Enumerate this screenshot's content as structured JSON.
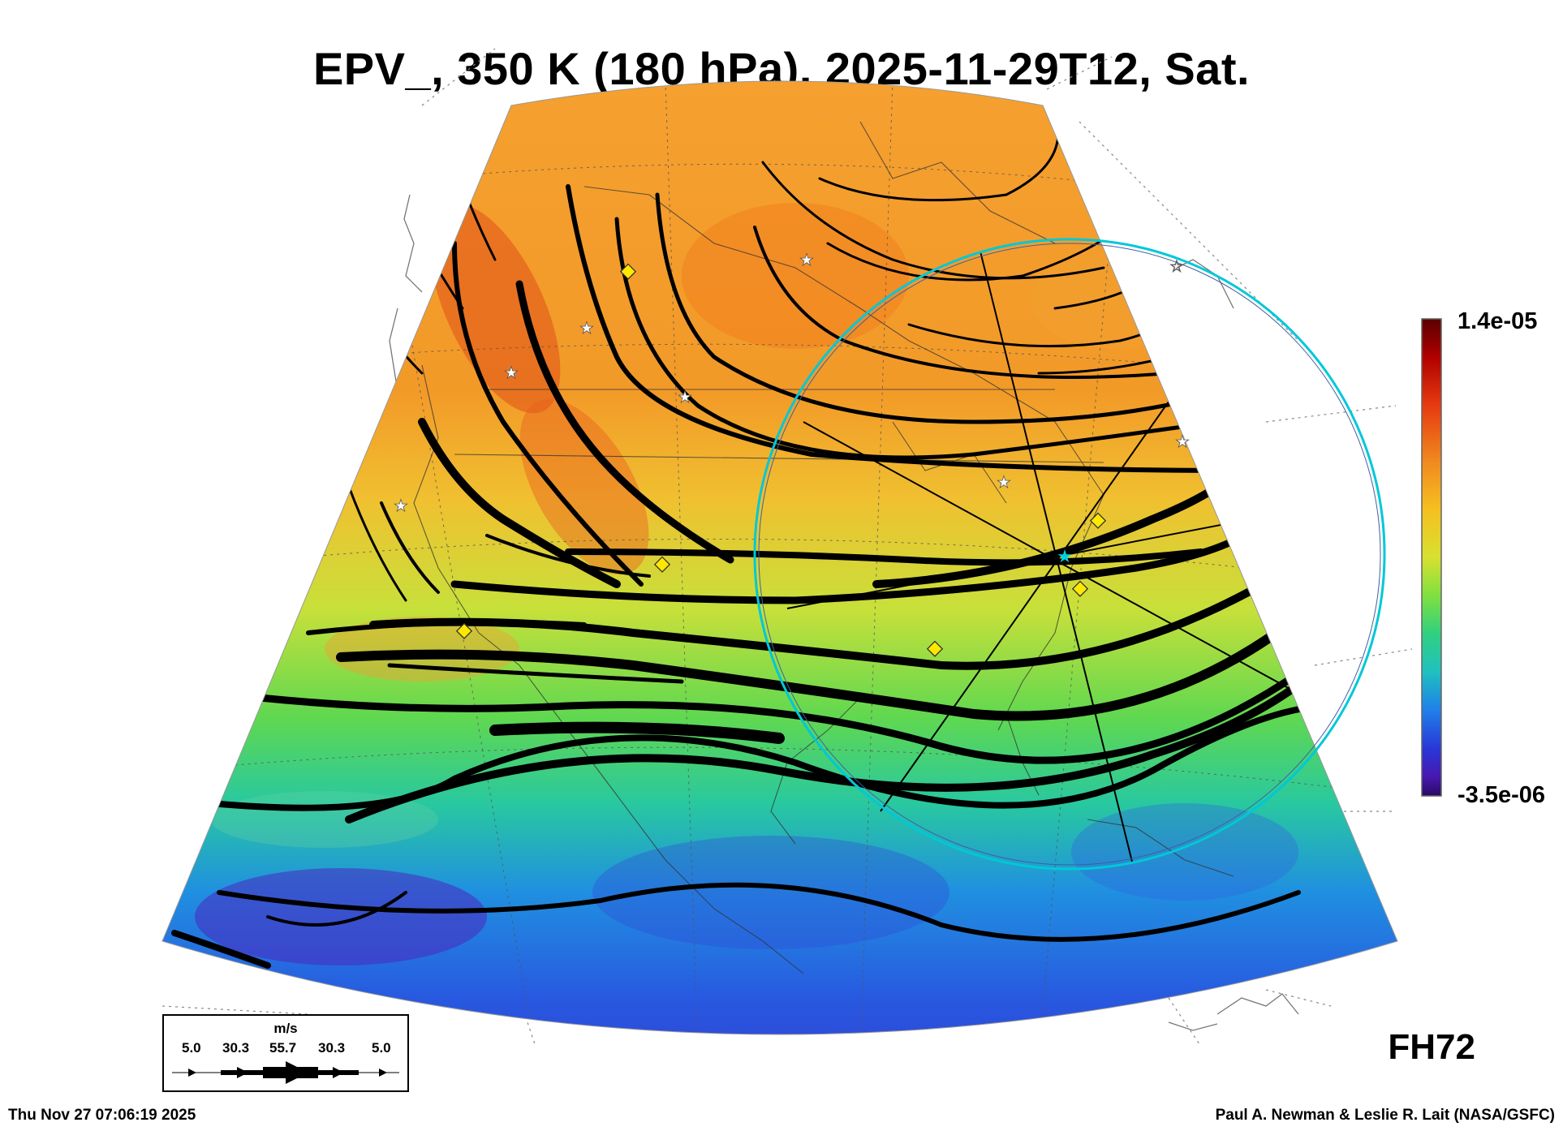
{
  "title": "EPV_, 350 K (180 hPa), 2025-11-29T12, Sat.",
  "colorbar": {
    "max_label": "1.4e-05",
    "min_label": "-3.5e-06",
    "colors": [
      "#5a0000",
      "#b00000",
      "#e53a10",
      "#f08a20",
      "#f5c020",
      "#d8e030",
      "#80e040",
      "#30d080",
      "#20c0c0",
      "#2080e8",
      "#2838d8",
      "#4818b0",
      "#2a0a60"
    ]
  },
  "forecast_hour": "FH72",
  "wind_scale": {
    "unit": "m/s",
    "values": [
      "5.0",
      "30.3",
      "55.7",
      "30.3",
      "5.0"
    ]
  },
  "footer": {
    "timestamp": "Thu Nov 27 07:06:19 2025",
    "credit": "Paul A. Newman & Leslie R. Lait (NASA/GSFC)"
  },
  "colors": {
    "ring": "#00c8d8",
    "streamline": "#000000",
    "station_marker": "#ffe800"
  }
}
